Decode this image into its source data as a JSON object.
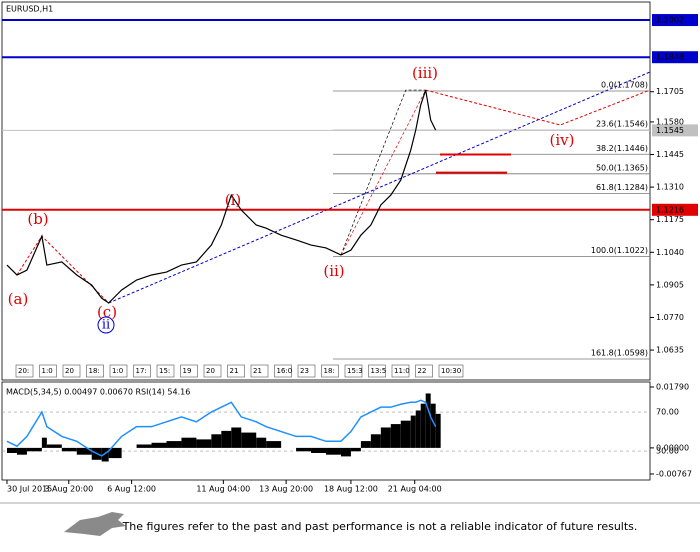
{
  "chart_data": {
    "type": "line",
    "title": "EURUSD,H1",
    "x": [
      5,
      15,
      25,
      40,
      45,
      60,
      75,
      90,
      100,
      107,
      120,
      135,
      150,
      165,
      180,
      195,
      210,
      220,
      230,
      240,
      255,
      265,
      280,
      295,
      310,
      325,
      340,
      350,
      360,
      370,
      380,
      390,
      400,
      410,
      415,
      420,
      425,
      430,
      435
    ],
    "xlim": [
      0,
      650
    ],
    "xticks": [
      {
        "value": 5,
        "label": "30 Jul 2015"
      },
      {
        "value": 67,
        "label": "3 Aug 20:00"
      },
      {
        "value": 130,
        "label": "6 Aug 12:00"
      },
      {
        "value": 222,
        "label": "11 Aug 04:00"
      },
      {
        "value": 285,
        "label": "13 Aug 20:00"
      },
      {
        "value": 350,
        "label": "18 Aug 12:00"
      },
      {
        "value": 414,
        "label": "21 Aug 04:00"
      }
    ],
    "series": [
      {
        "name": "EURUSD",
        "color": "#000000",
        "values": [
          1.0987,
          1.0946,
          1.0966,
          1.1107,
          1.0987,
          1.1,
          1.0946,
          1.0904,
          1.085,
          1.083,
          1.0884,
          1.0925,
          1.0946,
          1.0958,
          1.0987,
          1.1,
          1.107,
          1.1153,
          1.1277,
          1.1215,
          1.1153,
          1.114,
          1.1111,
          1.1091,
          1.107,
          1.1058,
          1.1029,
          1.1049,
          1.1111,
          1.1153,
          1.1236,
          1.1277,
          1.1339,
          1.1463,
          1.1546,
          1.165,
          1.1712,
          1.1588,
          1.1546
        ]
      }
    ],
    "ylim": [
      1.0511,
      1.2085
    ],
    "yticks": [
      1.1705,
      {
        "value": 1.158,
        "label": "1.1580"
      },
      1.1445,
      {
        "value": 1.131,
        "label": "1.1310"
      },
      1.1175,
      {
        "value": 1.104,
        "label": "1.1040"
      },
      1.0905,
      {
        "value": 1.077,
        "label": "1.0770"
      },
      1.0635
    ],
    "levels": {
      "values": [
        1.2002,
        1.1848,
        1.1545,
        1.1216
      ],
      "colors": [
        "#0000cc",
        "#0000cc",
        "#c0c0c0",
        "#e00000"
      ]
    },
    "fib_levels": [
      {
        "label": "0.0(1.1708)",
        "value": 1.1708
      },
      {
        "label": "23.6(1.1546)",
        "value": 1.1546
      },
      {
        "label": "38.2(1.1446)",
        "value": 1.1446
      },
      {
        "label": "50.0(1.1365)",
        "value": 1.1365
      },
      {
        "label": "61.8(1.1284)",
        "value": 1.1284
      },
      {
        "label": "100.0(1.1022)",
        "value": 1.1022
      },
      {
        "label": "161.8(1.0598)",
        "value": 1.0598
      }
    ],
    "targets": [
      1.1445,
      1.137
    ],
    "annotations": [
      "(a)",
      "(b)",
      "(c)",
      "ii",
      "(i)",
      "(ii)",
      "(iii)",
      "(iv)"
    ],
    "time_boxes": [
      "20:",
      "1:0",
      "20",
      "18:",
      "1:0",
      "17:",
      "15:",
      "19",
      "20",
      "21",
      "21",
      "16:0",
      "23",
      "18:",
      "15:3",
      "13:5",
      "11:0",
      "22",
      "10:30"
    ],
    "indicator": {
      "title": "MACD(5,34,5) 0.00497 0.00670 RSI(14) 54.16",
      "macd": {
        "name": "MACD",
        "color": "#000000",
        "values": [
          -0.0015,
          -0.002,
          -0.001,
          0.003,
          0.001,
          -0.001,
          -0.002,
          -0.0035,
          -0.004,
          -0.003,
          0.0,
          0.001,
          0.0015,
          0.002,
          0.003,
          0.0025,
          0.004,
          0.005,
          0.006,
          0.0045,
          0.003,
          0.002,
          0.0,
          -0.001,
          -0.0015,
          -0.002,
          -0.0025,
          -0.001,
          0.002,
          0.004,
          0.006,
          0.007,
          0.008,
          0.0095,
          0.011,
          0.013,
          0.016,
          0.013,
          0.01
        ]
      },
      "rsi": {
        "name": "RSI",
        "color": "#1e90ff",
        "values": [
          40,
          35,
          45,
          70,
          55,
          45,
          40,
          30,
          25,
          30,
          45,
          55,
          55,
          60,
          65,
          60,
          70,
          75,
          80,
          65,
          60,
          55,
          50,
          45,
          45,
          40,
          40,
          50,
          65,
          70,
          75,
          75,
          78,
          80,
          80,
          82,
          80,
          65,
          55
        ]
      },
      "ylim": [
        -0.00944,
        0.01937
      ],
      "yticks": [
        {
          "value": 0.0179,
          "label": "0.01790"
        },
        {
          "value": 0,
          "label": "0.00000"
        },
        {
          "value": -0.00767,
          "label": "-0.00767"
        }
      ],
      "y2lim": [
        0.3,
        100.8
      ],
      "y2ticks": [
        {
          "value": 70,
          "label": "70.00"
        },
        {
          "value": 30,
          "label": "30.00"
        }
      ]
    },
    "footer": "The figures refer to the past and past performance is not a reliable indicator of future results."
  }
}
